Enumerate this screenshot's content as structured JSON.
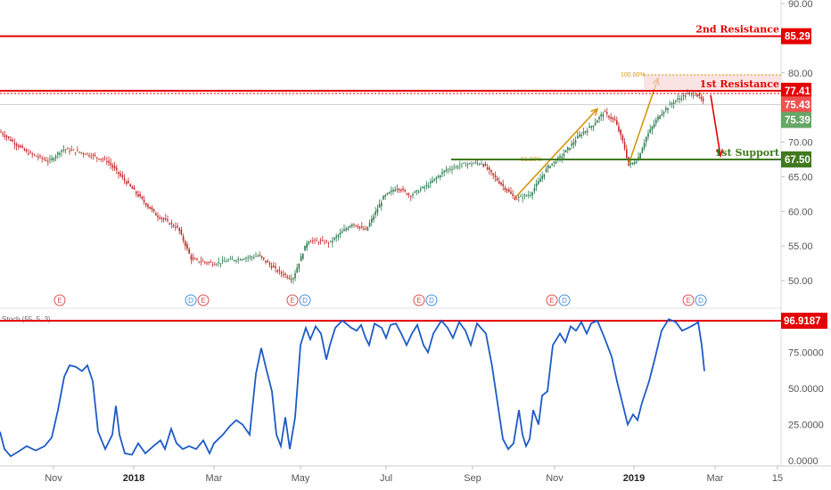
{
  "chart_data": {
    "type": "candlestick",
    "title": "",
    "price_axis": {
      "ylim": [
        45.0,
        92.0
      ],
      "ticks": [
        "90.00",
        "80.00",
        "70.00",
        "65.00",
        "60.00",
        "55.00",
        "50.00"
      ]
    },
    "time_axis": {
      "ticks": [
        "Nov",
        "2018",
        "Mar",
        "May",
        "Jul",
        "Sep",
        "Nov",
        "2019",
        "Mar",
        "15"
      ]
    },
    "price_path": [
      [
        0,
        71.5
      ],
      [
        30,
        68.5
      ],
      [
        55,
        67.2
      ],
      [
        70,
        69.0
      ],
      [
        95,
        68.4
      ],
      [
        120,
        67.3
      ],
      [
        150,
        63.0
      ],
      [
        175,
        59.5
      ],
      [
        200,
        57.5
      ],
      [
        215,
        53.0
      ],
      [
        240,
        52.5
      ],
      [
        260,
        53.0
      ],
      [
        290,
        53.6
      ],
      [
        310,
        51.5
      ],
      [
        328,
        50.2
      ],
      [
        345,
        55.8
      ],
      [
        370,
        55.5
      ],
      [
        395,
        58.3
      ],
      [
        410,
        57.2
      ],
      [
        430,
        62.0
      ],
      [
        445,
        63.5
      ],
      [
        460,
        62.3
      ],
      [
        480,
        63.8
      ],
      [
        500,
        66.0
      ],
      [
        520,
        66.8
      ],
      [
        540,
        67.0
      ],
      [
        560,
        64.2
      ],
      [
        578,
        61.8
      ],
      [
        595,
        62.5
      ],
      [
        615,
        66.5
      ],
      [
        630,
        68.0
      ],
      [
        650,
        71.0
      ],
      [
        665,
        72.5
      ],
      [
        677,
        74.3
      ],
      [
        690,
        73.0
      ],
      [
        700,
        69.5
      ],
      [
        705,
        66.6
      ],
      [
        715,
        67.5
      ],
      [
        725,
        70.8
      ],
      [
        740,
        74.0
      ],
      [
        755,
        75.8
      ],
      [
        770,
        76.9
      ],
      [
        780,
        77.0
      ],
      [
        786,
        76.2
      ],
      [
        790,
        75.4
      ]
    ],
    "levels": [
      {
        "label": "2nd Resistance",
        "value": "85.29",
        "color": "#e50000"
      },
      {
        "label": "1st Resistance",
        "value": "77.41",
        "color": "#e50000"
      },
      {
        "label": "1st Support",
        "value": "67.50",
        "color": "#3f7a1d"
      }
    ],
    "price_tags": [
      {
        "value": "75.43",
        "y": 75.43,
        "color": "#ef5350"
      },
      {
        "value": "75.39",
        "y": 75.0,
        "color": "#66a666"
      }
    ],
    "fibonacci": {
      "top_label": "100.00%",
      "bottom_label": "61.80%"
    },
    "projections": [
      {
        "from": [
          578,
          62.0
        ],
        "to": [
          670,
          74.8
        ],
        "color": "#d4960f"
      },
      {
        "from": [
          705,
          66.8
        ],
        "to": [
          738,
          79.2
        ],
        "color": "#d4960f"
      },
      {
        "from": [
          797,
          76.8
        ],
        "to": [
          808,
          68.0
        ],
        "color": "#e50000"
      }
    ],
    "events": [
      {
        "x": 67,
        "tags": [
          "E"
        ]
      },
      {
        "x": 214,
        "tags": [
          "D",
          "E"
        ]
      },
      {
        "x": 328,
        "tags": [
          "E",
          "D"
        ]
      },
      {
        "x": 470,
        "tags": [
          "E",
          "D"
        ]
      },
      {
        "x": 619,
        "tags": [
          "E",
          "D"
        ]
      },
      {
        "x": 772,
        "tags": [
          "E",
          "D"
        ]
      }
    ],
    "oscillator": {
      "name": "Stoch (55, 5, 3)",
      "ylim": [
        0,
        100
      ],
      "ticks": [
        "75.0000",
        "50.0000",
        "25.0000",
        "0.0000"
      ],
      "level": {
        "value": "96.9187",
        "color": "#e50000"
      },
      "path": [
        [
          0,
          20
        ],
        [
          5,
          8
        ],
        [
          12,
          3
        ],
        [
          20,
          6
        ],
        [
          30,
          10
        ],
        [
          40,
          7
        ],
        [
          50,
          10
        ],
        [
          58,
          16
        ],
        [
          65,
          35
        ],
        [
          72,
          58
        ],
        [
          78,
          66
        ],
        [
          85,
          65
        ],
        [
          92,
          62
        ],
        [
          98,
          66
        ],
        [
          104,
          55
        ],
        [
          110,
          20
        ],
        [
          118,
          8
        ],
        [
          126,
          18
        ],
        [
          130,
          38
        ],
        [
          134,
          18
        ],
        [
          140,
          5
        ],
        [
          148,
          4
        ],
        [
          155,
          12
        ],
        [
          163,
          5
        ],
        [
          172,
          10
        ],
        [
          180,
          14
        ],
        [
          185,
          8
        ],
        [
          192,
          22
        ],
        [
          198,
          12
        ],
        [
          205,
          8
        ],
        [
          212,
          10
        ],
        [
          220,
          8
        ],
        [
          228,
          14
        ],
        [
          235,
          5
        ],
        [
          240,
          12
        ],
        [
          250,
          18
        ],
        [
          258,
          24
        ],
        [
          265,
          28
        ],
        [
          272,
          25
        ],
        [
          280,
          18
        ],
        [
          287,
          60
        ],
        [
          293,
          78
        ],
        [
          298,
          65
        ],
        [
          305,
          48
        ],
        [
          310,
          18
        ],
        [
          315,
          10
        ],
        [
          320,
          30
        ],
        [
          325,
          8
        ],
        [
          331,
          30
        ],
        [
          337,
          80
        ],
        [
          343,
          92
        ],
        [
          348,
          84
        ],
        [
          354,
          93
        ],
        [
          360,
          88
        ],
        [
          366,
          70
        ],
        [
          370,
          80
        ],
        [
          376,
          92
        ],
        [
          384,
          97
        ],
        [
          394,
          92
        ],
        [
          400,
          90
        ],
        [
          405,
          94
        ],
        [
          410,
          85
        ],
        [
          414,
          80
        ],
        [
          420,
          95
        ],
        [
          428,
          92
        ],
        [
          433,
          85
        ],
        [
          438,
          94
        ],
        [
          444,
          95
        ],
        [
          450,
          88
        ],
        [
          456,
          80
        ],
        [
          462,
          88
        ],
        [
          468,
          94
        ],
        [
          475,
          80
        ],
        [
          480,
          75
        ],
        [
          486,
          88
        ],
        [
          495,
          97
        ],
        [
          502,
          92
        ],
        [
          508,
          85
        ],
        [
          515,
          96
        ],
        [
          522,
          90
        ],
        [
          528,
          80
        ],
        [
          535,
          95
        ],
        [
          545,
          88
        ],
        [
          552,
          65
        ],
        [
          558,
          40
        ],
        [
          564,
          15
        ],
        [
          570,
          8
        ],
        [
          576,
          12
        ],
        [
          582,
          35
        ],
        [
          586,
          18
        ],
        [
          590,
          10
        ],
        [
          594,
          15
        ],
        [
          598,
          35
        ],
        [
          604,
          25
        ],
        [
          608,
          45
        ],
        [
          614,
          48
        ],
        [
          620,
          80
        ],
        [
          628,
          88
        ],
        [
          634,
          82
        ],
        [
          640,
          93
        ],
        [
          646,
          90
        ],
        [
          652,
          96
        ],
        [
          658,
          88
        ],
        [
          663,
          95
        ],
        [
          670,
          97
        ],
        [
          678,
          85
        ],
        [
          686,
          72
        ],
        [
          692,
          55
        ],
        [
          698,
          40
        ],
        [
          704,
          25
        ],
        [
          710,
          32
        ],
        [
          715,
          28
        ],
        [
          720,
          40
        ],
        [
          728,
          55
        ],
        [
          735,
          72
        ],
        [
          742,
          90
        ],
        [
          750,
          98
        ],
        [
          758,
          96
        ],
        [
          765,
          90
        ],
        [
          772,
          92
        ],
        [
          778,
          94
        ],
        [
          783,
          96
        ],
        [
          787,
          80
        ],
        [
          790,
          62
        ]
      ]
    }
  }
}
